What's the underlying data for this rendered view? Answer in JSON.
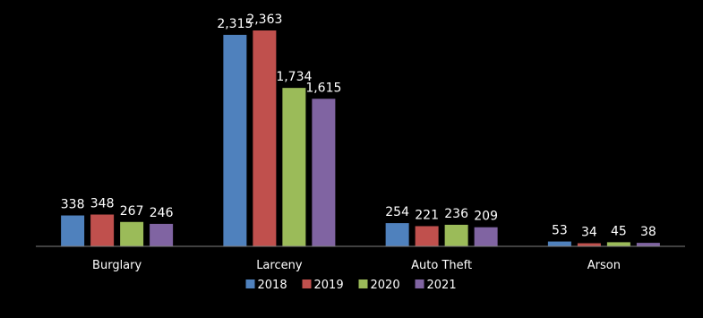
{
  "chart_data": {
    "type": "bar",
    "title": "",
    "xlabel": "",
    "ylabel": "",
    "categories": [
      "Burglary",
      "Larceny",
      "Auto Theft",
      "Arson"
    ],
    "series": [
      {
        "name": "2018",
        "color": "#4F81BD",
        "values": [
          338,
          2315,
          254,
          53
        ],
        "labels": [
          "338",
          "2,315",
          "254",
          "53"
        ]
      },
      {
        "name": "2019",
        "color": "#C0504D",
        "values": [
          348,
          2363,
          221,
          34
        ],
        "labels": [
          "348",
          "2,363",
          "221",
          "34"
        ]
      },
      {
        "name": "2020",
        "color": "#9BBB59",
        "values": [
          267,
          1734,
          236,
          45
        ],
        "labels": [
          "267",
          "1,734",
          "236",
          "45"
        ]
      },
      {
        "name": "2021",
        "color": "#8064A2",
        "values": [
          246,
          1615,
          209,
          38
        ],
        "labels": [
          "246",
          "1,615",
          "209",
          "38"
        ]
      }
    ],
    "ylim": [
      0,
      2363
    ],
    "grid": false,
    "legend_position": "bottom",
    "background": "#000000",
    "axis_color": "#808080"
  }
}
